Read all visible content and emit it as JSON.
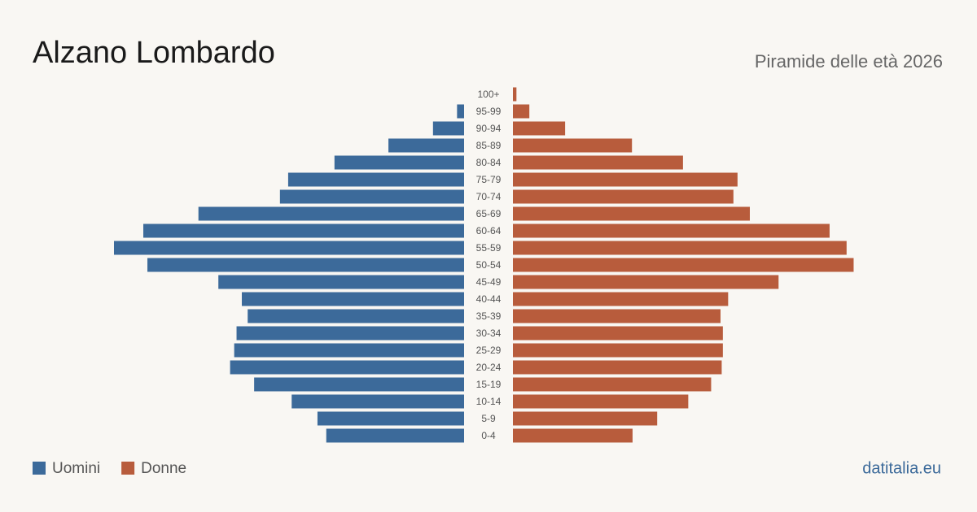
{
  "chart_data": {
    "type": "pyramid",
    "title": "Alzano Lombardo",
    "subtitle": "Piramide delle età 2026",
    "source": "datitalia.eu",
    "categories": [
      "100+",
      "95-99",
      "90-94",
      "85-89",
      "80-84",
      "75-79",
      "70-74",
      "65-69",
      "60-64",
      "55-59",
      "50-54",
      "45-49",
      "40-44",
      "35-39",
      "30-34",
      "25-29",
      "20-24",
      "15-19",
      "10-14",
      "5-9",
      "0-4"
    ],
    "series": [
      {
        "name": "Uomini",
        "color": "#3c6a9a",
        "values": [
          0,
          12,
          53,
          129,
          221,
          300,
          314,
          453,
          547,
          597,
          540,
          419,
          379,
          369,
          388,
          392,
          399,
          358,
          294,
          250,
          235
        ]
      },
      {
        "name": "Donne",
        "color": "#b85c3c",
        "values": [
          6,
          28,
          89,
          203,
          290,
          383,
          376,
          404,
          540,
          569,
          581,
          453,
          367,
          354,
          358,
          358,
          356,
          338,
          299,
          246,
          204
        ]
      }
    ]
  }
}
